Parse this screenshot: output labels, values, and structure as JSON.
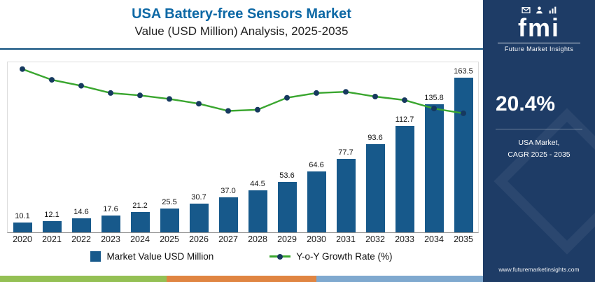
{
  "header": {
    "title": "USA Battery-free Sensors Market",
    "subtitle": "Value (USD Million) Analysis, 2025-2035"
  },
  "legend": {
    "bar_label": "Market Value USD Million",
    "line_label": "Y-o-Y Growth Rate (%)"
  },
  "sidebar": {
    "logo_text": "fmi",
    "logo_subtext": "Future Market Insights",
    "logo_icons": [
      "mail-icon",
      "person-icon",
      "chart-icon"
    ],
    "cagr_value": "20.4%",
    "caption_line1": "USA Market,",
    "caption_line2": "CAGR 2025 - 2035",
    "website": "www.futuremarketinsights.com"
  },
  "colors": {
    "bar": "#17598b",
    "line": "#3aa62f",
    "marker": "#16395f",
    "panel": "#1e3c66",
    "title": "#0d68a5",
    "rule": "#0d4e7c",
    "strip": [
      "#94c054",
      "#e08542",
      "#7fa9cf",
      "#1e3c66"
    ]
  },
  "chart_data": {
    "type": "combo",
    "title": "USA Battery-free Sensors Market",
    "subtitle": "Value (USD Million) Analysis, 2025-2035",
    "categories": [
      "2020",
      "2021",
      "2022",
      "2023",
      "2024",
      "2025",
      "2026",
      "2027",
      "2028",
      "2029",
      "2030",
      "2031",
      "2032",
      "2033",
      "2034",
      "2035"
    ],
    "series": [
      {
        "name": "Market Value USD Million",
        "type": "bar",
        "values": [
          10.1,
          12.1,
          14.6,
          17.6,
          21.2,
          25.5,
          30.7,
          37.0,
          44.5,
          53.6,
          64.6,
          77.7,
          93.6,
          112.7,
          135.8,
          163.5
        ]
      },
      {
        "name": "Y-o-Y Growth Rate (%)",
        "type": "line",
        "values": [
          22.3,
          21.4,
          20.9,
          20.3,
          20.1,
          19.8,
          19.4,
          18.8,
          18.9,
          19.9,
          20.3,
          20.4,
          20.0,
          19.7,
          19.0,
          18.6
        ]
      }
    ],
    "xlabel": "",
    "ylabel": "",
    "ylim": [
      0,
      180
    ],
    "bar_value_labels": true,
    "grid": false,
    "legend_position": "bottom"
  }
}
